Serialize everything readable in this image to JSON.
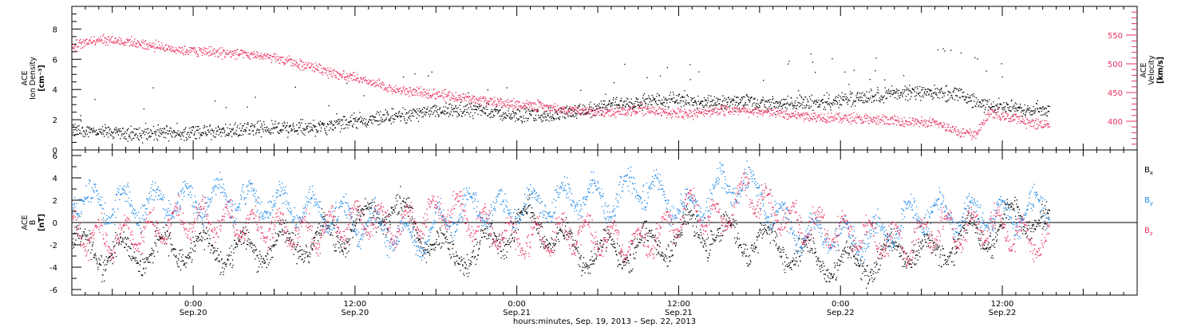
{
  "colors": {
    "black": "#000000",
    "pink": "#e8315f",
    "blue": "#1e88e5",
    "frame": "#000000"
  },
  "x_axis": {
    "title": "hours:minutes, Sep. 19, 2013 – Sep. 22, 2013",
    "ticks": [
      {
        "hour": 24,
        "time": "0:00",
        "date": "Sep.20"
      },
      {
        "hour": 36,
        "time": "12:00",
        "date": "Sep.20"
      },
      {
        "hour": 48,
        "time": "0:00",
        "date": "Sep.21"
      },
      {
        "hour": 60,
        "time": "12:00",
        "date": "Sep.21"
      },
      {
        "hour": 72,
        "time": "0:00",
        "date": "Sep.22"
      },
      {
        "hour": 84,
        "time": "12:00",
        "date": "Sep.22"
      }
    ]
  },
  "chart_data": [
    {
      "type": "scatter",
      "panel": "top",
      "xlim_hours": [
        15,
        94
      ],
      "left_axis": {
        "label_lines": [
          "ACE",
          "Ion Density"
        ],
        "unit": "[cm⁻³]",
        "ylim": [
          0,
          9.5
        ],
        "ticks": [
          0,
          2,
          4,
          6,
          8
        ]
      },
      "right_axis": {
        "label_lines": [
          "ACE",
          "Velocity"
        ],
        "unit": "[km/s]",
        "ylim": [
          350,
          600
        ],
        "ticks": [
          400,
          450,
          500,
          550
        ],
        "color": "pink"
      },
      "series": [
        {
          "axis": "left",
          "color": "black",
          "knots": [
            [
              15,
              1.3
            ],
            [
              20,
              1.1
            ],
            [
              25,
              1.2
            ],
            [
              30,
              1.5
            ],
            [
              33,
              1.5
            ],
            [
              35,
              1.8
            ],
            [
              37,
              2.0
            ],
            [
              40,
              2.4
            ],
            [
              43,
              2.6
            ],
            [
              45,
              2.7
            ],
            [
              47,
              2.4
            ],
            [
              50,
              2.3
            ],
            [
              53,
              2.6
            ],
            [
              55,
              3.0
            ],
            [
              57,
              3.2
            ],
            [
              60,
              3.4
            ],
            [
              62,
              3.2
            ],
            [
              65,
              3.2
            ],
            [
              67,
              3.0
            ],
            [
              69,
              3.1
            ],
            [
              71,
              3.2
            ],
            [
              73,
              3.4
            ],
            [
              76,
              3.8
            ],
            [
              79,
              3.8
            ],
            [
              81,
              3.7
            ],
            [
              82,
              3.1
            ],
            [
              84,
              2.9
            ],
            [
              86,
              2.7
            ],
            [
              87.5,
              2.7
            ]
          ]
        },
        {
          "axis": "right",
          "color": "pink",
          "knots": [
            [
              15,
              530
            ],
            [
              17,
              545
            ],
            [
              20,
              535
            ],
            [
              23,
              525
            ],
            [
              26,
              520
            ],
            [
              29,
              515
            ],
            [
              31,
              505
            ],
            [
              33,
              495
            ],
            [
              35,
              480
            ],
            [
              37,
              468
            ],
            [
              39,
              455
            ],
            [
              41,
              450
            ],
            [
              43,
              445
            ],
            [
              45,
              438
            ],
            [
              47,
              432
            ],
            [
              49,
              428
            ],
            [
              51,
              422
            ],
            [
              53,
              418
            ],
            [
              55,
              415
            ],
            [
              57,
              422
            ],
            [
              59,
              416
            ],
            [
              61,
              414
            ],
            [
              63,
              420
            ],
            [
              65,
              418
            ],
            [
              67,
              416
            ],
            [
              69,
              410
            ],
            [
              71,
              408
            ],
            [
              73,
              405
            ],
            [
              75,
              402
            ],
            [
              77,
              400
            ],
            [
              79,
              397
            ],
            [
              80,
              390
            ],
            [
              81,
              380
            ],
            [
              82,
              378
            ],
            [
              83,
              415
            ],
            [
              84,
              410
            ],
            [
              85,
              405
            ],
            [
              86,
              398
            ],
            [
              87.5,
              395
            ]
          ]
        }
      ]
    },
    {
      "type": "scatter",
      "panel": "bottom",
      "xlim_hours": [
        15,
        94
      ],
      "left_axis": {
        "label_lines": [
          "ACE",
          "B"
        ],
        "unit": "[nT]",
        "ylim": [
          -6.5,
          6.5
        ],
        "ticks": [
          -6,
          -4,
          -2,
          0,
          2,
          4,
          6
        ]
      },
      "legend": [
        {
          "base": "B",
          "sub": "x",
          "color": "black"
        },
        {
          "base": "B",
          "sub": "y",
          "color": "blue"
        },
        {
          "base": "B",
          "sub": "z",
          "color": "pink"
        }
      ],
      "series": [
        {
          "name": "Bx",
          "color": "black",
          "knots": [
            [
              15,
              -2
            ],
            [
              18,
              -2.8
            ],
            [
              21,
              -2.5
            ],
            [
              24,
              -2.2
            ],
            [
              27,
              -2.6
            ],
            [
              30,
              -2.0
            ],
            [
              33,
              -1.5
            ],
            [
              35,
              -1.0
            ],
            [
              37,
              0.5
            ],
            [
              39,
              1.5
            ],
            [
              41,
              -1.0
            ],
            [
              43,
              -3.0
            ],
            [
              45,
              -2.5
            ],
            [
              47,
              -1.0
            ],
            [
              49,
              0.5
            ],
            [
              51,
              -1.5
            ],
            [
              53,
              -2.8
            ],
            [
              55,
              -2.5
            ],
            [
              57,
              -2.0
            ],
            [
              59,
              -1.8
            ],
            [
              61,
              -0.5
            ],
            [
              63,
              -1.0
            ],
            [
              65,
              -1.5
            ],
            [
              67,
              -2.0
            ],
            [
              69,
              -2.8
            ],
            [
              71,
              -3.5
            ],
            [
              73,
              -3.8
            ],
            [
              75,
              -3.2
            ],
            [
              77,
              -2.0
            ],
            [
              79,
              -3.0
            ],
            [
              81,
              -1.0
            ],
            [
              83,
              -1.0
            ],
            [
              85,
              0.5
            ],
            [
              87,
              0.2
            ],
            [
              87.5,
              -0.5
            ]
          ]
        },
        {
          "name": "By",
          "color": "blue",
          "knots": [
            [
              15,
              2.5
            ],
            [
              18,
              1.5
            ],
            [
              21,
              1.8
            ],
            [
              24,
              2.0
            ],
            [
              27,
              2.3
            ],
            [
              30,
              1.8
            ],
            [
              33,
              1.0
            ],
            [
              35,
              0.5
            ],
            [
              37,
              0
            ],
            [
              39,
              -1.0
            ],
            [
              41,
              -1.5
            ],
            [
              43,
              0.5
            ],
            [
              45,
              1.5
            ],
            [
              47,
              1.0
            ],
            [
              49,
              1.5
            ],
            [
              51,
              2.0
            ],
            [
              53,
              2.5
            ],
            [
              55,
              2.0
            ],
            [
              57,
              3.5
            ],
            [
              59,
              2.0
            ],
            [
              61,
              1.0
            ],
            [
              63,
              3.0
            ],
            [
              65,
              3.5
            ],
            [
              67,
              1.0
            ],
            [
              69,
              -1.0
            ],
            [
              71,
              -1.0
            ],
            [
              73,
              -1.5
            ],
            [
              75,
              -1.0
            ],
            [
              77,
              0.5
            ],
            [
              79,
              1.0
            ],
            [
              81,
              0.5
            ],
            [
              83,
              1.0
            ],
            [
              85,
              0.5
            ],
            [
              87,
              1.5
            ],
            [
              87.5,
              1.2
            ]
          ]
        },
        {
          "name": "Bz",
          "color": "pink",
          "knots": [
            [
              15,
              -1.0
            ],
            [
              18,
              -1.5
            ],
            [
              21,
              -0.5
            ],
            [
              24,
              0.5
            ],
            [
              27,
              0
            ],
            [
              30,
              -0.5
            ],
            [
              33,
              -1.0
            ],
            [
              35,
              0
            ],
            [
              37,
              0.5
            ],
            [
              39,
              -0.5
            ],
            [
              41,
              0.5
            ],
            [
              43,
              1.5
            ],
            [
              45,
              0
            ],
            [
              47,
              -1.0
            ],
            [
              49,
              -1.5
            ],
            [
              51,
              -1.0
            ],
            [
              53,
              -1.0
            ],
            [
              55,
              -1.5
            ],
            [
              57,
              -2.0
            ],
            [
              59,
              -0.5
            ],
            [
              61,
              1.5
            ],
            [
              63,
              0
            ],
            [
              65,
              3.0
            ],
            [
              67,
              1.0
            ],
            [
              69,
              0
            ],
            [
              71,
              -0.5
            ],
            [
              73,
              -1.0
            ],
            [
              75,
              -1.5
            ],
            [
              77,
              -2.0
            ],
            [
              79,
              -0.5
            ],
            [
              81,
              -1.0
            ],
            [
              83,
              0
            ],
            [
              85,
              -1.0
            ],
            [
              87,
              -1.5
            ],
            [
              87.5,
              -2.0
            ]
          ]
        }
      ]
    }
  ]
}
